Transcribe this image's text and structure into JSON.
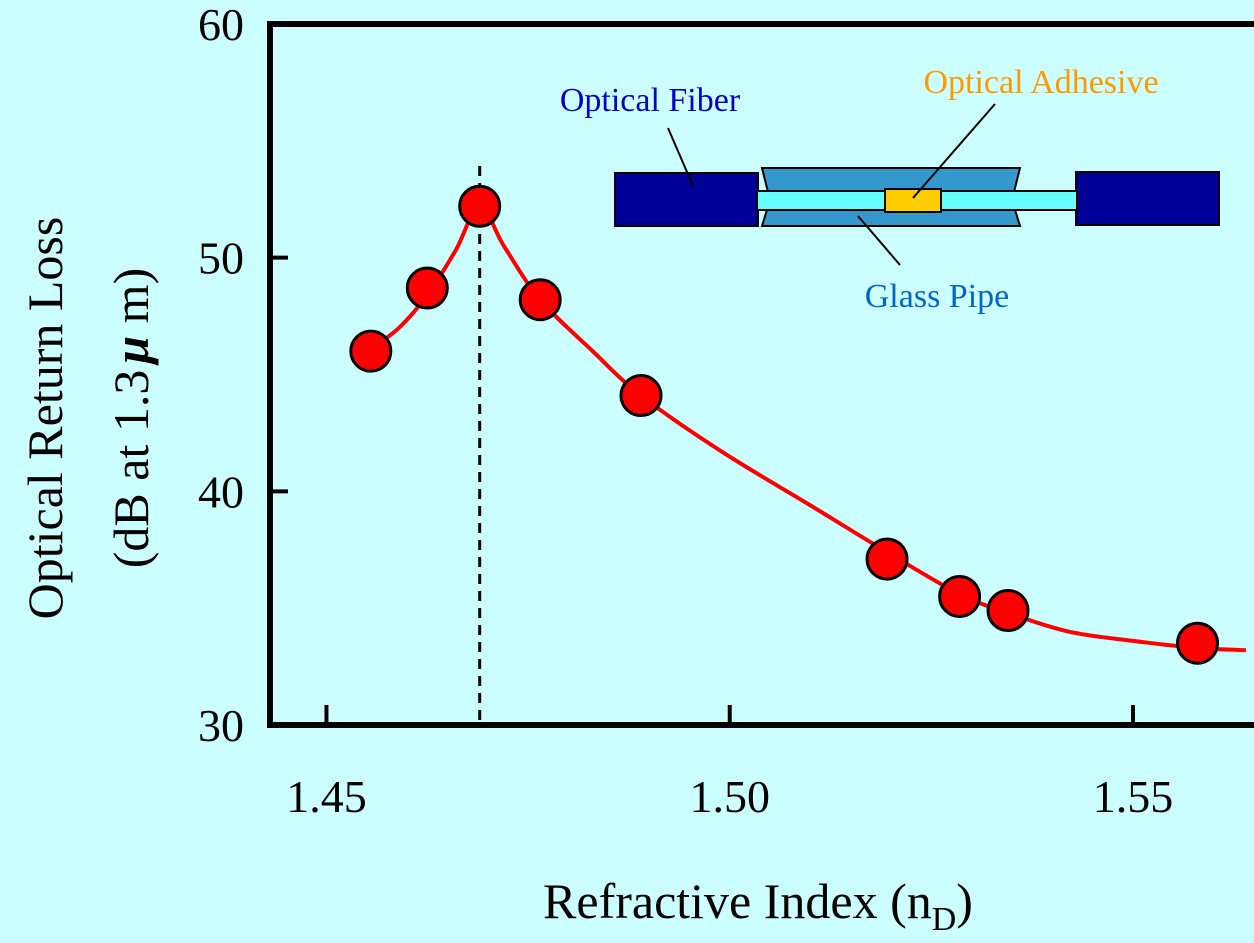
{
  "chart_data": {
    "type": "scatter",
    "xlabel": "Refractive Index (n",
    "xlabel_sub": "D",
    "xlabel_close": ")",
    "ylabel_line1": "Optical Return Loss",
    "ylabel_line2_prefix": "(dB at 1.3",
    "ylabel_mu": "μ",
    "ylabel_line2_suffix": " m)",
    "xlim": [
      1.443,
      1.565
    ],
    "ylim": [
      30,
      60
    ],
    "x_ticks": [
      1.45,
      1.5,
      1.55
    ],
    "x_tick_labels": [
      "1.45",
      "1.50",
      "1.55"
    ],
    "y_ticks": [
      30,
      40,
      50,
      60
    ],
    "y_tick_labels": [
      "30",
      "40",
      "50",
      "60"
    ],
    "points": [
      {
        "x": 1.4555,
        "y": 46.0
      },
      {
        "x": 1.4625,
        "y": 48.7
      },
      {
        "x": 1.469,
        "y": 52.2
      },
      {
        "x": 1.4765,
        "y": 48.2
      },
      {
        "x": 1.489,
        "y": 44.1
      },
      {
        "x": 1.5195,
        "y": 37.1
      },
      {
        "x": 1.5285,
        "y": 35.5
      },
      {
        "x": 1.5345,
        "y": 34.9
      },
      {
        "x": 1.558,
        "y": 33.5
      }
    ],
    "fit_curve": [
      [
        1.4555,
        46.1
      ],
      [
        1.459,
        47.0
      ],
      [
        1.4625,
        48.4
      ],
      [
        1.466,
        50.3
      ],
      [
        1.469,
        52.2
      ],
      [
        1.472,
        50.5
      ],
      [
        1.4765,
        48.2
      ],
      [
        1.483,
        46.0
      ],
      [
        1.489,
        44.1
      ],
      [
        1.499,
        41.7
      ],
      [
        1.51,
        39.4
      ],
      [
        1.5195,
        37.4
      ],
      [
        1.5285,
        35.6
      ],
      [
        1.5345,
        34.8
      ],
      [
        1.542,
        34.0
      ],
      [
        1.55,
        33.6
      ],
      [
        1.558,
        33.3
      ],
      [
        1.564,
        33.2
      ]
    ],
    "peak_line_x": 1.469,
    "grid": false,
    "colors": {
      "background": "#ccffff",
      "marker": "#ff0000",
      "curve": "#ff0000",
      "fiber_label": "#0000cc",
      "adhesive_label": "#ff9900",
      "pipe_label": "#0066cc",
      "fiber_block": "#000099",
      "glass_pipe": "#3399cc",
      "fiber_core": "#66ffff",
      "adhesive": "#ffcc00"
    }
  },
  "inset": {
    "optical_fiber_label": "Optical Fiber",
    "optical_adhesive_label": "Optical Adhesive",
    "glass_pipe_label": "Glass Pipe"
  }
}
